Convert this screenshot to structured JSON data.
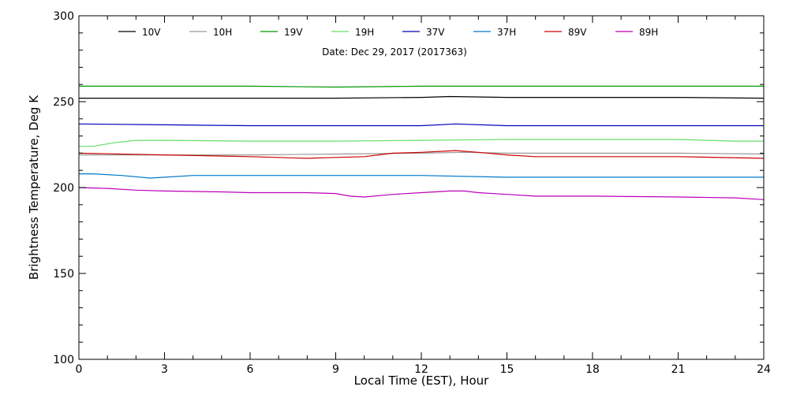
{
  "chart_data": {
    "type": "line",
    "subtitle": "Date: Dec 29, 2017 (2017363)",
    "xlabel": "Local Time (EST), Hour",
    "ylabel": "Brightness Temperature, Deg K",
    "xlim": [
      0,
      24
    ],
    "ylim": [
      100,
      300
    ],
    "xticks": [
      0,
      3,
      6,
      9,
      12,
      15,
      18,
      21,
      24
    ],
    "yticks": [
      100,
      150,
      200,
      250,
      300
    ],
    "grid": false,
    "legend_position": "top",
    "series": [
      {
        "name": "10V",
        "color": "#000000",
        "x": [
          0,
          3,
          6,
          9,
          12,
          13,
          15,
          18,
          21,
          24
        ],
        "y": [
          252,
          252,
          252,
          252,
          252.5,
          253,
          252.5,
          252.5,
          252.5,
          252
        ]
      },
      {
        "name": "10H",
        "color": "#999999",
        "x": [
          0,
          3,
          6,
          9,
          12,
          13.5,
          15,
          18,
          21,
          24
        ],
        "y": [
          219,
          219,
          219,
          219.5,
          220,
          220.5,
          220,
          220,
          220,
          219.5
        ]
      },
      {
        "name": "19V",
        "color": "#009900",
        "x": [
          0,
          3,
          6,
          9,
          12,
          15,
          18,
          21,
          24
        ],
        "y": [
          259,
          259,
          259,
          258.5,
          259,
          259,
          259,
          259,
          259
        ]
      },
      {
        "name": "19H",
        "color": "#66dd66",
        "x": [
          0,
          0.5,
          1.2,
          2,
          3,
          6,
          9,
          12,
          15,
          18,
          21,
          23,
          24
        ],
        "y": [
          224,
          224,
          226,
          227.5,
          227.5,
          227,
          227,
          227.5,
          228,
          228,
          228,
          227,
          227
        ]
      },
      {
        "name": "37V",
        "color": "#0000bb",
        "x": [
          0,
          3,
          6,
          9,
          12,
          13.2,
          15,
          18,
          21,
          24
        ],
        "y": [
          237,
          236.5,
          236,
          236,
          236,
          237,
          236,
          236,
          236,
          236
        ]
      },
      {
        "name": "37H",
        "color": "#0077cc",
        "x": [
          0,
          0.5,
          1.5,
          2.5,
          3,
          4,
          6,
          9,
          12,
          15,
          18,
          21,
          24
        ],
        "y": [
          208,
          208,
          207,
          205.5,
          206,
          207,
          207,
          207,
          207,
          206,
          206,
          206,
          206
        ]
      },
      {
        "name": "89V",
        "color": "#cc0000",
        "x": [
          0,
          3,
          6,
          8,
          9,
          10,
          11,
          12,
          13.2,
          14,
          15,
          16,
          18,
          21,
          24
        ],
        "y": [
          220,
          219,
          218,
          217,
          217.5,
          218,
          220,
          220.5,
          221.5,
          220.5,
          219,
          218,
          218,
          218,
          217
        ]
      },
      {
        "name": "89H",
        "color": "#bb00bb",
        "x": [
          0,
          1,
          2,
          3,
          5,
          6,
          8,
          9,
          9.5,
          10,
          11,
          12,
          13,
          13.5,
          14,
          15,
          16,
          18,
          21,
          23,
          24
        ],
        "y": [
          200,
          199.5,
          198.5,
          198,
          197.5,
          197,
          197,
          196.5,
          195,
          194.5,
          196,
          197,
          198,
          198,
          197,
          196,
          195,
          195,
          194.5,
          194,
          193
        ]
      }
    ]
  }
}
